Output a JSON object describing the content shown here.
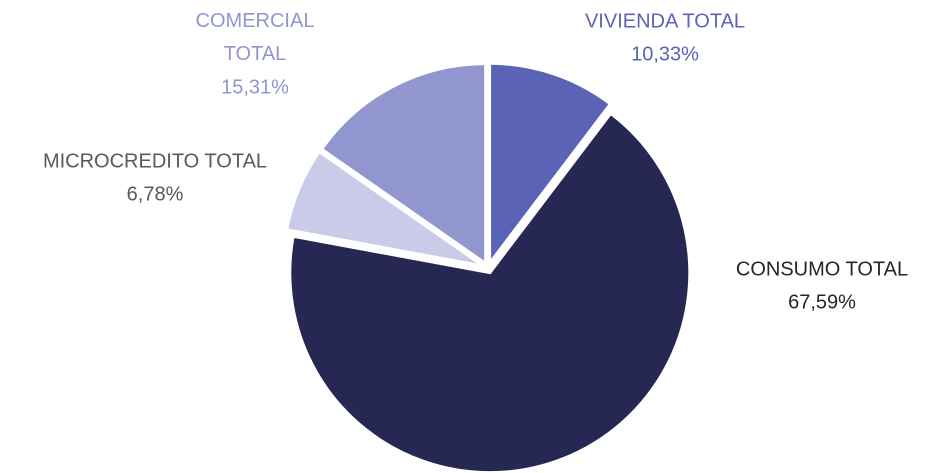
{
  "chart_data": {
    "type": "pie",
    "categories": [
      "VIVIENDA TOTAL",
      "CONSUMO TOTAL",
      "MICROCREDITO TOTAL",
      "COMERCIAL TOTAL"
    ],
    "values": [
      10.33,
      67.59,
      6.78,
      15.31
    ],
    "value_labels": [
      "10,33%",
      "67,59%",
      "6,78%",
      "15,31%"
    ],
    "colors": [
      "#5b63b7",
      "#262853",
      "#c9cbe8",
      "#9196cf"
    ]
  }
}
